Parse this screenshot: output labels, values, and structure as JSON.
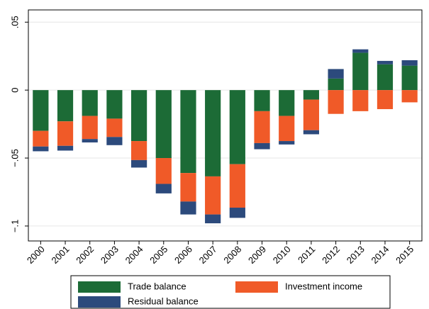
{
  "chart_data": {
    "type": "bar",
    "categories": [
      "2000",
      "2001",
      "2002",
      "2003",
      "2004",
      "2005",
      "2006",
      "2007",
      "2008",
      "2009",
      "2010",
      "2011",
      "2012",
      "2013",
      "2014",
      "2015"
    ],
    "series": [
      {
        "name": "Trade balance",
        "color": "#1c6b36",
        "values": [
          -0.03,
          -0.023,
          -0.019,
          -0.021,
          -0.0375,
          -0.05,
          -0.061,
          -0.0635,
          -0.0545,
          -0.0155,
          -0.019,
          -0.007,
          0.0085,
          0.0275,
          0.019,
          0.018
        ]
      },
      {
        "name": "Investment income",
        "color": "#f05a28",
        "values": [
          -0.0115,
          -0.018,
          -0.017,
          -0.0135,
          -0.014,
          -0.019,
          -0.021,
          -0.028,
          -0.032,
          -0.0235,
          -0.0185,
          -0.0225,
          -0.0175,
          -0.0155,
          -0.014,
          -0.009
        ]
      },
      {
        "name": "Residual balance",
        "color": "#2c4a7c",
        "values": [
          -0.0035,
          -0.0035,
          -0.0025,
          -0.006,
          -0.0055,
          -0.007,
          -0.0095,
          -0.0065,
          -0.0075,
          -0.0045,
          -0.0025,
          -0.003,
          0.007,
          0.0025,
          0.0025,
          0.004
        ]
      }
    ],
    "ylim": [
      -0.111,
      0.059
    ],
    "yticks": [
      {
        "value": 0.05,
        "label": ".05"
      },
      0,
      {
        "value": -0.05,
        "label": "−.05"
      },
      {
        "value": -0.1,
        "label": "−.1"
      }
    ],
    "grid": true,
    "stacked": true,
    "legend": "bottom"
  }
}
